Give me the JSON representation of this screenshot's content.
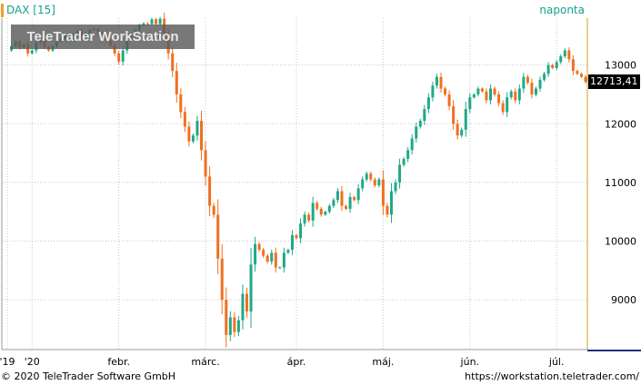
{
  "header": {
    "symbol": "DAX [15]",
    "interval": "naponta"
  },
  "watermark": "TeleTrader WorkStation",
  "last_price_label": "12713,41",
  "footer": {
    "copyright": "© 2020 TeleTrader Software GmbH",
    "url": "https://workstation.teletrader.com/"
  },
  "colors": {
    "up": "#20a888",
    "down": "#f07020",
    "grid": "#c8c8c8",
    "accent": "#f0a030",
    "axis": "#d0a020"
  },
  "chart_data": {
    "type": "candlestick",
    "yticks": [
      {
        "value": 9000,
        "label": "9000"
      },
      {
        "value": 10000,
        "label": "10000"
      },
      {
        "value": 11000,
        "label": "11000"
      },
      {
        "value": 12000,
        "label": "12000"
      },
      {
        "value": 13000,
        "label": "13000"
      }
    ],
    "xticks": [
      {
        "index": 0,
        "label": "'19"
      },
      {
        "index": 6,
        "label": "'20"
      },
      {
        "index": 27,
        "label": "febr."
      },
      {
        "index": 48,
        "label": "márc."
      },
      {
        "index": 70,
        "label": "ápr."
      },
      {
        "index": 91,
        "label": "máj."
      },
      {
        "index": 112,
        "label": "jún."
      },
      {
        "index": 133,
        "label": "júl."
      }
    ],
    "ylim": [
      8150,
      13800
    ],
    "grid": true,
    "last_value": 12713.41,
    "closes": [
      13250,
      13320,
      13400,
      13300,
      13350,
      13200,
      13250,
      13380,
      13420,
      13310,
      13250,
      13320,
      13400,
      13450,
      13510,
      13430,
      13520,
      13580,
      13460,
      13540,
      13600,
      13620,
      13530,
      13560,
      13420,
      13330,
      13200,
      13060,
      13250,
      13420,
      13510,
      13600,
      13680,
      13710,
      13700,
      13780,
      13700,
      13790,
      13500,
      13200,
      12900,
      12500,
      12200,
      11950,
      11700,
      11800,
      12050,
      11550,
      11100,
      10600,
      10450,
      9700,
      9000,
      8400,
      8700,
      8450,
      8650,
      9100,
      8800,
      9600,
      9950,
      9850,
      9750,
      9650,
      9800,
      9550,
      9550,
      9800,
      9850,
      10100,
      10050,
      10300,
      10450,
      10350,
      10650,
      10550,
      10450,
      10500,
      10600,
      10700,
      10850,
      10600,
      10550,
      10750,
      10700,
      10900,
      11050,
      11150,
      11050,
      10950,
      11050,
      10600,
      10450,
      10850,
      11000,
      11300,
      11400,
      11550,
      11750,
      11950,
      12050,
      12250,
      12450,
      12650,
      12800,
      12600,
      12500,
      12300,
      12000,
      11800,
      11900,
      12250,
      12450,
      12500,
      12600,
      12550,
      12400,
      12600,
      12500,
      12350,
      12200,
      12450,
      12550,
      12400,
      12600,
      12800,
      12700,
      12500,
      12600,
      12750,
      12850,
      13000,
      12950,
      13050,
      13150,
      13250,
      13100,
      12900,
      12850,
      12800,
      12713.41
    ]
  }
}
